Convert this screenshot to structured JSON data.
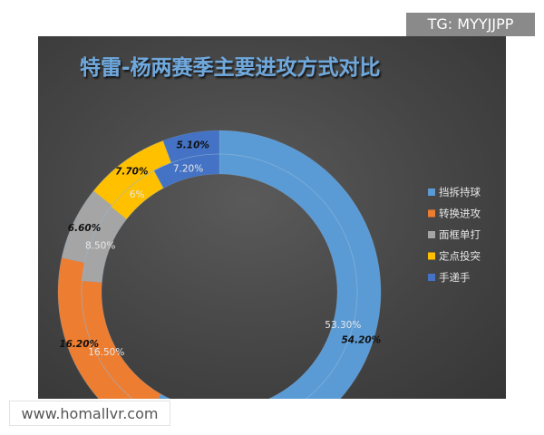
{
  "badges": {
    "telegram": "TG: MYYJJPP",
    "website": "www.homallvr.com"
  },
  "chart_data": {
    "type": "donut",
    "title": "特雷-杨两赛季主要进攻方式对比",
    "categories": [
      "挡拆持球",
      "转换进攻",
      "面框单打",
      "定点投突",
      "手递手"
    ],
    "colors": [
      "#5b9bd5",
      "#ed7d31",
      "#a5a5a5",
      "#ffc000",
      "#4472c4"
    ],
    "series": [
      {
        "ring": "outer",
        "values": [
          54.2,
          16.2,
          6.6,
          7.7,
          5.1
        ],
        "labels": [
          "54.20%",
          "16.20%",
          "6.60%",
          "7.70%",
          "5.10%"
        ]
      },
      {
        "ring": "inner",
        "values": [
          53.3,
          16.5,
          8.5,
          6,
          7.2
        ],
        "labels": [
          "53.30%",
          "16.50%",
          "8.50%",
          "6%",
          "7.20%"
        ]
      }
    ],
    "legend_position": "right"
  }
}
